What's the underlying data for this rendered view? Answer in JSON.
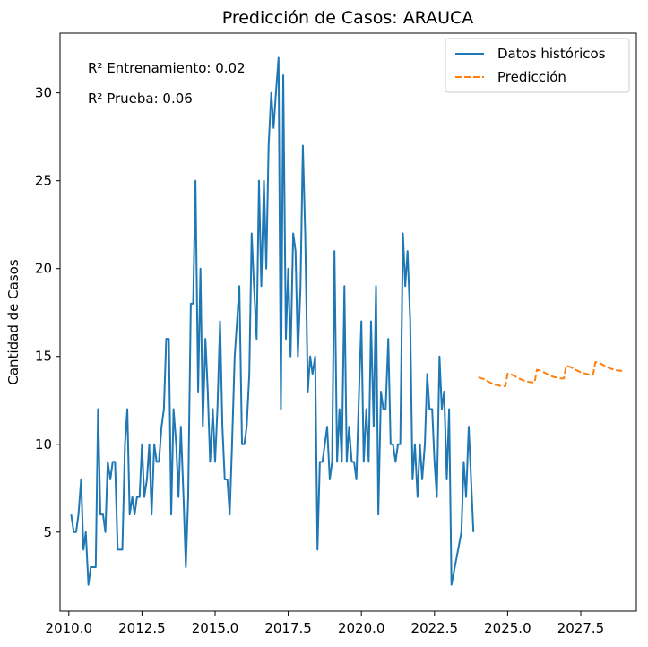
{
  "chart_data": {
    "type": "line",
    "title": "Predicción de Casos: ARAUCA",
    "xlabel": "",
    "ylabel": "Cantidad de Casos",
    "xlim": [
      2009.7,
      2029.4
    ],
    "ylim": [
      0.5,
      33.4
    ],
    "x_ticks": [
      2010.0,
      2012.5,
      2015.0,
      2017.5,
      2020.0,
      2022.5,
      2025.0,
      2027.5
    ],
    "x_tick_labels": [
      "2010.0",
      "2012.5",
      "2015.0",
      "2017.5",
      "2020.0",
      "2022.5",
      "2025.0",
      "2027.5"
    ],
    "y_ticks": [
      5,
      10,
      15,
      20,
      25,
      30
    ],
    "y_tick_labels": [
      "5",
      "10",
      "15",
      "20",
      "25",
      "30"
    ],
    "grid": false,
    "legend_placement": "top-right",
    "annotations": [
      "R² Entrenamiento: 0.02",
      "R² Prueba: 0.06"
    ],
    "series": [
      {
        "name": "Datos históricos",
        "color": "#1f77b4",
        "style": "solid",
        "points": [
          [
            2010.08,
            6
          ],
          [
            2010.17,
            5
          ],
          [
            2010.25,
            5
          ],
          [
            2010.33,
            6
          ],
          [
            2010.42,
            8
          ],
          [
            2010.5,
            4
          ],
          [
            2010.58,
            5
          ],
          [
            2010.67,
            2
          ],
          [
            2010.75,
            3
          ],
          [
            2010.83,
            3
          ],
          [
            2010.92,
            3
          ],
          [
            2011.0,
            12
          ],
          [
            2011.08,
            6
          ],
          [
            2011.17,
            6
          ],
          [
            2011.25,
            5
          ],
          [
            2011.33,
            9
          ],
          [
            2011.42,
            8
          ],
          [
            2011.5,
            9
          ],
          [
            2011.58,
            9
          ],
          [
            2011.67,
            4
          ],
          [
            2011.75,
            4
          ],
          [
            2011.83,
            4
          ],
          [
            2011.92,
            10
          ],
          [
            2012.0,
            12
          ],
          [
            2012.08,
            6
          ],
          [
            2012.17,
            7
          ],
          [
            2012.25,
            6
          ],
          [
            2012.33,
            7
          ],
          [
            2012.42,
            7
          ],
          [
            2012.5,
            10
          ],
          [
            2012.58,
            7
          ],
          [
            2012.67,
            8
          ],
          [
            2012.75,
            10
          ],
          [
            2012.83,
            6
          ],
          [
            2012.92,
            10
          ],
          [
            2013.0,
            9
          ],
          [
            2013.08,
            9
          ],
          [
            2013.17,
            11
          ],
          [
            2013.25,
            12
          ],
          [
            2013.33,
            16
          ],
          [
            2013.42,
            16
          ],
          [
            2013.5,
            6
          ],
          [
            2013.58,
            12
          ],
          [
            2013.67,
            10
          ],
          [
            2013.75,
            7
          ],
          [
            2013.83,
            11
          ],
          [
            2013.92,
            7
          ],
          [
            2014.0,
            3
          ],
          [
            2014.08,
            7
          ],
          [
            2014.17,
            18
          ],
          [
            2014.25,
            18
          ],
          [
            2014.33,
            25
          ],
          [
            2014.42,
            13
          ],
          [
            2014.5,
            20
          ],
          [
            2014.58,
            11
          ],
          [
            2014.67,
            16
          ],
          [
            2014.75,
            13
          ],
          [
            2014.83,
            9
          ],
          [
            2014.92,
            12
          ],
          [
            2015.0,
            9
          ],
          [
            2015.08,
            12
          ],
          [
            2015.17,
            17
          ],
          [
            2015.25,
            11
          ],
          [
            2015.33,
            8
          ],
          [
            2015.42,
            8
          ],
          [
            2015.5,
            6
          ],
          [
            2015.58,
            10
          ],
          [
            2015.67,
            15
          ],
          [
            2015.75,
            17
          ],
          [
            2015.83,
            19
          ],
          [
            2015.92,
            10
          ],
          [
            2016.0,
            10
          ],
          [
            2016.08,
            11
          ],
          [
            2016.17,
            14
          ],
          [
            2016.25,
            22
          ],
          [
            2016.33,
            19
          ],
          [
            2016.42,
            16
          ],
          [
            2016.5,
            25
          ],
          [
            2016.58,
            19
          ],
          [
            2016.67,
            25
          ],
          [
            2016.75,
            20
          ],
          [
            2016.83,
            27
          ],
          [
            2016.92,
            30
          ],
          [
            2017.0,
            28
          ],
          [
            2017.08,
            30
          ],
          [
            2017.17,
            32
          ],
          [
            2017.25,
            12
          ],
          [
            2017.33,
            31
          ],
          [
            2017.42,
            16
          ],
          [
            2017.5,
            20
          ],
          [
            2017.58,
            15
          ],
          [
            2017.67,
            22
          ],
          [
            2017.75,
            21
          ],
          [
            2017.83,
            15
          ],
          [
            2017.92,
            19
          ],
          [
            2018.0,
            27
          ],
          [
            2018.08,
            22
          ],
          [
            2018.17,
            13
          ],
          [
            2018.25,
            15
          ],
          [
            2018.33,
            14
          ],
          [
            2018.42,
            15
          ],
          [
            2018.5,
            4
          ],
          [
            2018.58,
            9
          ],
          [
            2018.67,
            9
          ],
          [
            2018.75,
            10
          ],
          [
            2018.83,
            11
          ],
          [
            2018.92,
            8
          ],
          [
            2019.0,
            9
          ],
          [
            2019.08,
            21
          ],
          [
            2019.17,
            9
          ],
          [
            2019.25,
            12
          ],
          [
            2019.33,
            9
          ],
          [
            2019.42,
            19
          ],
          [
            2019.5,
            9
          ],
          [
            2019.58,
            11
          ],
          [
            2019.67,
            9
          ],
          [
            2019.75,
            9
          ],
          [
            2019.83,
            8
          ],
          [
            2019.92,
            13
          ],
          [
            2020.0,
            17
          ],
          [
            2020.08,
            9
          ],
          [
            2020.17,
            12
          ],
          [
            2020.25,
            9
          ],
          [
            2020.33,
            17
          ],
          [
            2020.42,
            11
          ],
          [
            2020.5,
            19
          ],
          [
            2020.58,
            6
          ],
          [
            2020.67,
            13
          ],
          [
            2020.75,
            12
          ],
          [
            2020.83,
            12
          ],
          [
            2020.92,
            16
          ],
          [
            2021.0,
            10
          ],
          [
            2021.08,
            10
          ],
          [
            2021.17,
            9
          ],
          [
            2021.25,
            10
          ],
          [
            2021.33,
            10
          ],
          [
            2021.42,
            22
          ],
          [
            2021.5,
            19
          ],
          [
            2021.58,
            21
          ],
          [
            2021.67,
            17
          ],
          [
            2021.75,
            8
          ],
          [
            2021.83,
            10
          ],
          [
            2021.92,
            7
          ],
          [
            2022.0,
            10
          ],
          [
            2022.08,
            8
          ],
          [
            2022.17,
            10
          ],
          [
            2022.25,
            14
          ],
          [
            2022.33,
            12
          ],
          [
            2022.42,
            12
          ],
          [
            2022.5,
            9
          ],
          [
            2022.58,
            7
          ],
          [
            2022.67,
            15
          ],
          [
            2022.75,
            12
          ],
          [
            2022.83,
            13
          ],
          [
            2022.92,
            8
          ],
          [
            2023.0,
            12
          ],
          [
            2023.08,
            2
          ],
          [
            2023.42,
            5
          ],
          [
            2023.5,
            9
          ],
          [
            2023.58,
            7
          ],
          [
            2023.67,
            11
          ],
          [
            2023.75,
            8
          ],
          [
            2023.83,
            5
          ]
        ]
      },
      {
        "name": "Predicción",
        "color": "#ff7f0e",
        "style": "dashed",
        "points": [
          [
            2024.0,
            13.8
          ],
          [
            2024.08,
            13.77
          ],
          [
            2024.17,
            13.72
          ],
          [
            2024.25,
            13.65
          ],
          [
            2024.33,
            13.57
          ],
          [
            2024.42,
            13.5
          ],
          [
            2024.5,
            13.44
          ],
          [
            2024.58,
            13.39
          ],
          [
            2024.67,
            13.36
          ],
          [
            2024.75,
            13.32
          ],
          [
            2024.83,
            13.31
          ],
          [
            2024.92,
            13.3
          ],
          [
            2025.0,
            14.02
          ],
          [
            2025.08,
            13.99
          ],
          [
            2025.17,
            13.94
          ],
          [
            2025.25,
            13.87
          ],
          [
            2025.33,
            13.79
          ],
          [
            2025.42,
            13.72
          ],
          [
            2025.5,
            13.66
          ],
          [
            2025.58,
            13.61
          ],
          [
            2025.67,
            13.58
          ],
          [
            2025.75,
            13.54
          ],
          [
            2025.83,
            13.53
          ],
          [
            2025.92,
            13.52
          ],
          [
            2026.0,
            14.24
          ],
          [
            2026.08,
            14.21
          ],
          [
            2026.17,
            14.16
          ],
          [
            2026.25,
            14.09
          ],
          [
            2026.33,
            14.01
          ],
          [
            2026.42,
            13.94
          ],
          [
            2026.5,
            13.88
          ],
          [
            2026.58,
            13.83
          ],
          [
            2026.67,
            13.8
          ],
          [
            2026.75,
            13.76
          ],
          [
            2026.83,
            13.75
          ],
          [
            2026.92,
            13.74
          ],
          [
            2027.0,
            14.46
          ],
          [
            2027.08,
            14.43
          ],
          [
            2027.17,
            14.38
          ],
          [
            2027.25,
            14.31
          ],
          [
            2027.33,
            14.23
          ],
          [
            2027.42,
            14.16
          ],
          [
            2027.5,
            14.1
          ],
          [
            2027.58,
            14.05
          ],
          [
            2027.67,
            14.02
          ],
          [
            2027.75,
            13.98
          ],
          [
            2027.83,
            13.97
          ],
          [
            2027.92,
            13.96
          ],
          [
            2028.0,
            14.68
          ],
          [
            2028.08,
            14.65
          ],
          [
            2028.17,
            14.6
          ],
          [
            2028.25,
            14.53
          ],
          [
            2028.33,
            14.45
          ],
          [
            2028.42,
            14.38
          ],
          [
            2028.5,
            14.32
          ],
          [
            2028.58,
            14.27
          ],
          [
            2028.67,
            14.24
          ],
          [
            2028.75,
            14.2
          ],
          [
            2028.83,
            14.19
          ],
          [
            2028.92,
            14.18
          ]
        ]
      }
    ]
  }
}
